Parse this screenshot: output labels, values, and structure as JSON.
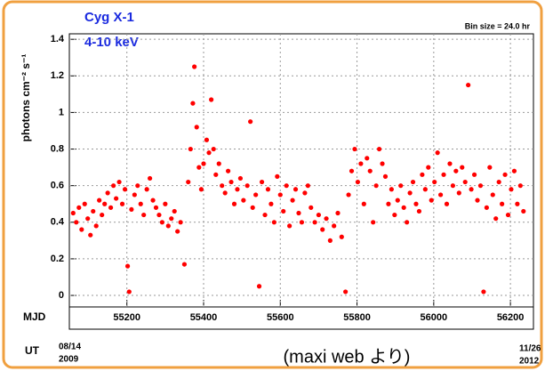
{
  "chart_data": {
    "type": "scatter",
    "title": "Cyg X-1",
    "subtitle": "4-10 keV",
    "bin_label": "Bin size = 24.0 hr",
    "y_label": "photons cm⁻² s⁻¹",
    "x_label": "MJD",
    "ut_label": "UT",
    "ut_start": [
      "08/14",
      "2009"
    ],
    "ut_end": [
      "11/26",
      "2012"
    ],
    "source_note": "(maxi web より)",
    "color": "#ff0000",
    "xlim": [
      55050,
      56260
    ],
    "ylim": [
      -0.063,
      1.43
    ],
    "xticks": [
      55200,
      55400,
      55600,
      55800,
      56000,
      56200
    ],
    "yticks": [
      0,
      0.2,
      0.4,
      0.6,
      0.8,
      {
        "value": 1,
        "label": "1"
      },
      1.2,
      1.4
    ],
    "grid": true,
    "x": [
      55060,
      55068,
      55075,
      55082,
      55090,
      55098,
      55105,
      55112,
      55120,
      55128,
      55135,
      55142,
      55150,
      55158,
      55165,
      55172,
      55180,
      55188,
      55195,
      55202,
      55206,
      55212,
      55220,
      55228,
      55236,
      55244,
      55252,
      55260,
      55268,
      55276,
      55284,
      55292,
      55300,
      55308,
      55316,
      55324,
      55332,
      55340,
      55350,
      55360,
      55366,
      55372,
      55376,
      55382,
      55388,
      55394,
      55400,
      55408,
      55414,
      55420,
      55426,
      55432,
      55440,
      55448,
      55456,
      55464,
      55472,
      55480,
      55488,
      55496,
      55504,
      55514,
      55522,
      55528,
      55536,
      55545,
      55552,
      55560,
      55568,
      55576,
      55584,
      55592,
      55600,
      55608,
      55616,
      55624,
      55632,
      55640,
      55648,
      55656,
      55664,
      55672,
      55680,
      55690,
      55700,
      55710,
      55720,
      55730,
      55740,
      55750,
      55760,
      55770,
      55778,
      55786,
      55794,
      55802,
      55810,
      55818,
      55826,
      55834,
      55842,
      55850,
      55858,
      55866,
      55874,
      55882,
      55890,
      55898,
      55906,
      55914,
      55922,
      55930,
      55938,
      55946,
      55954,
      55962,
      55970,
      55978,
      55986,
      55994,
      56002,
      56010,
      56018,
      56026,
      56034,
      56042,
      56050,
      56058,
      56066,
      56074,
      56082,
      56090,
      56098,
      56106,
      56114,
      56122,
      56130,
      56138,
      56146,
      56154,
      56162,
      56170,
      56178,
      56186,
      56194,
      56202,
      56210,
      56218,
      56226,
      56234
    ],
    "values": [
      0.45,
      0.4,
      0.48,
      0.36,
      0.5,
      0.42,
      0.33,
      0.46,
      0.38,
      0.52,
      0.44,
      0.5,
      0.56,
      0.48,
      0.6,
      0.53,
      0.62,
      0.5,
      0.58,
      0.16,
      0.02,
      0.47,
      0.55,
      0.6,
      0.5,
      0.44,
      0.58,
      0.64,
      0.52,
      0.48,
      0.44,
      0.4,
      0.5,
      0.38,
      0.42,
      0.46,
      0.35,
      0.4,
      0.17,
      0.62,
      0.8,
      1.05,
      1.25,
      0.92,
      0.7,
      0.58,
      0.72,
      0.85,
      0.78,
      1.07,
      0.8,
      0.66,
      0.72,
      0.6,
      0.56,
      0.68,
      0.62,
      0.5,
      0.58,
      0.64,
      0.52,
      0.6,
      0.95,
      0.48,
      0.55,
      0.05,
      0.62,
      0.44,
      0.58,
      0.5,
      0.4,
      0.65,
      0.55,
      0.46,
      0.6,
      0.38,
      0.52,
      0.58,
      0.45,
      0.4,
      0.56,
      0.6,
      0.48,
      0.4,
      0.44,
      0.36,
      0.42,
      0.3,
      0.38,
      0.45,
      0.32,
      0.02,
      0.55,
      0.68,
      0.8,
      0.62,
      0.72,
      0.5,
      0.75,
      0.68,
      0.4,
      0.6,
      0.8,
      0.72,
      0.65,
      0.5,
      0.58,
      0.44,
      0.52,
      0.6,
      0.48,
      0.4,
      0.56,
      0.62,
      0.5,
      0.46,
      0.66,
      0.58,
      0.7,
      0.52,
      0.62,
      0.78,
      0.55,
      0.66,
      0.5,
      0.72,
      0.6,
      0.68,
      0.56,
      0.7,
      0.62,
      1.15,
      0.58,
      0.66,
      0.52,
      0.6,
      0.02,
      0.48,
      0.7,
      0.55,
      0.42,
      0.62,
      0.5,
      0.66,
      0.44,
      0.58,
      0.68,
      0.5,
      0.6,
      0.46
    ]
  }
}
